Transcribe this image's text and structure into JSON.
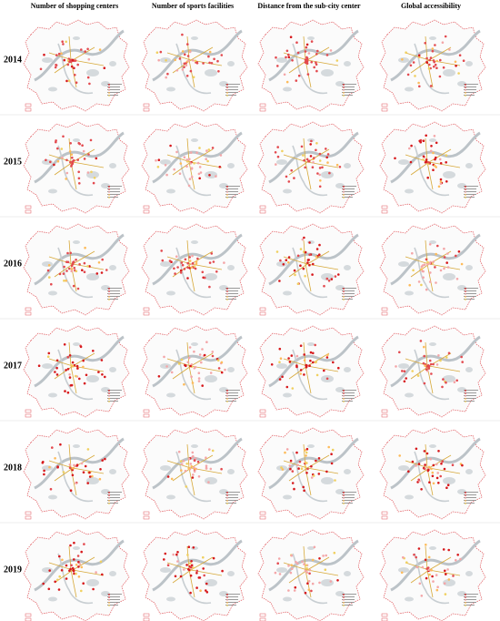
{
  "columns": [
    "Number of shopping centers",
    "Number of sports facilities",
    "Distance from the sub-city center",
    "Global accessibility"
  ],
  "rows": [
    "2014",
    "2015",
    "2016",
    "2017",
    "2018",
    "2019"
  ]
}
